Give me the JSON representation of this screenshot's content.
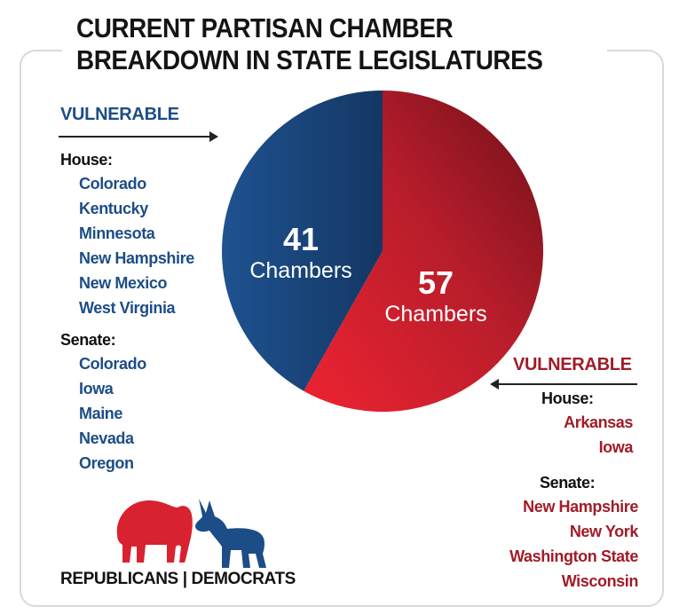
{
  "title": {
    "line1": "CURRENT PARTISAN CHAMBER",
    "line2": "BREAKDOWN IN STATE LEGISLATURES"
  },
  "chart_data": {
    "type": "pie",
    "title": "CURRENT PARTISAN CHAMBER BREAKDOWN IN STATE LEGISLATURES",
    "slices": [
      {
        "name": "Democrats",
        "value": 41,
        "label_number": "41",
        "label_text": "Chambers",
        "color": "#1d4d86"
      },
      {
        "name": "Republicans",
        "value": 57,
        "label_number": "57",
        "label_text": "Chambers",
        "color": "#b3202c"
      }
    ]
  },
  "democrats": {
    "vulnerable_label": "VULNERABLE",
    "house_heading": "House:",
    "house": [
      "Colorado",
      "Kentucky",
      "Minnesota",
      "New Hampshire",
      "New Mexico",
      "West Virginia"
    ],
    "senate_heading": "Senate:",
    "senate": [
      "Colorado",
      "Iowa",
      "Maine",
      "Nevada",
      "Oregon"
    ]
  },
  "republicans": {
    "vulnerable_label": "VULNERABLE",
    "house_heading": "House:",
    "house": [
      "Arkansas",
      "Iowa"
    ],
    "senate_heading": "Senate:",
    "senate": [
      "New Hampshire",
      "New York",
      "Washington State",
      "Wisconsin"
    ]
  },
  "legend": {
    "label": "REPUBLICANS | DEMOCRATS",
    "elephant_color": "#d9222f",
    "donkey_color": "#1d4d86"
  },
  "colors": {
    "blue_dark": "#163a69",
    "blue": "#1d4d86",
    "red_light": "#e8212f",
    "red_dark": "#7e1420"
  }
}
